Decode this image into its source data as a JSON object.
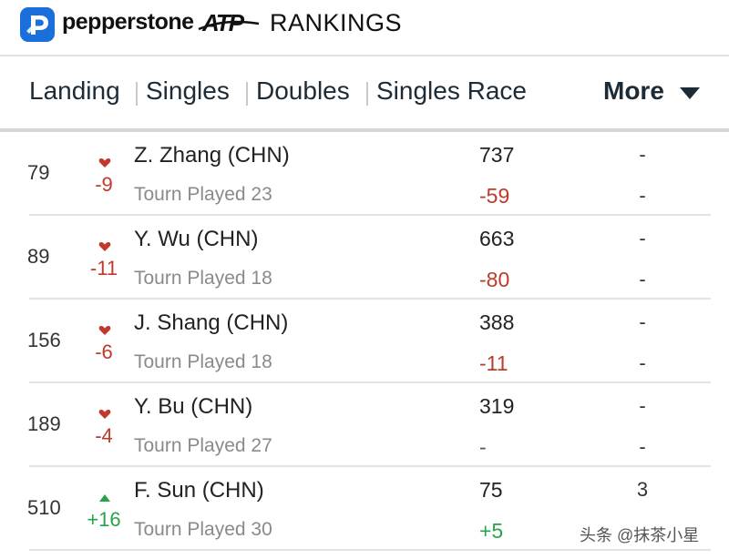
{
  "header": {
    "brand": "pepperstone",
    "atp": "ATP",
    "title": "RANKINGS",
    "logo_icon": "pepperstone-p-logo",
    "logo_color": "#1a6fdb"
  },
  "nav": {
    "tabs": [
      "Landing",
      "Singles",
      "Doubles",
      "Singles Race"
    ],
    "more_label": "More",
    "more_icon": "caret-down-icon"
  },
  "colors": {
    "down": "#c0392b",
    "up": "#27a34a"
  },
  "players": [
    {
      "rank": "79",
      "move_dir": "down",
      "move": "-9",
      "name": "Z. Zhang (CHN)",
      "tourn_label": "Tourn Played",
      "tourn_count": "23",
      "points": "737",
      "points_change": "-59",
      "change_dir": "down",
      "col3_top": "-",
      "col3_bottom": "-"
    },
    {
      "rank": "89",
      "move_dir": "down",
      "move": "-11",
      "name": "Y. Wu (CHN)",
      "tourn_label": "Tourn Played",
      "tourn_count": "18",
      "points": "663",
      "points_change": "-80",
      "change_dir": "down",
      "col3_top": "-",
      "col3_bottom": "-"
    },
    {
      "rank": "156",
      "move_dir": "down",
      "move": "-6",
      "name": "J. Shang (CHN)",
      "tourn_label": "Tourn Played",
      "tourn_count": "18",
      "points": "388",
      "points_change": "-11",
      "change_dir": "down",
      "col3_top": "-",
      "col3_bottom": "-"
    },
    {
      "rank": "189",
      "move_dir": "down",
      "move": "-4",
      "name": "Y. Bu (CHN)",
      "tourn_label": "Tourn Played",
      "tourn_count": "27",
      "points": "319",
      "points_change": "-",
      "change_dir": "neutral",
      "col3_top": "-",
      "col3_bottom": "-"
    },
    {
      "rank": "510",
      "move_dir": "up",
      "move": "+16",
      "name": "F. Sun (CHN)",
      "tourn_label": "Tourn Played",
      "tourn_count": "30",
      "points": "75",
      "points_change": "+5",
      "change_dir": "up",
      "col3_top": "3",
      "col3_bottom": ""
    }
  ],
  "watermark": "头条 @抹茶小星"
}
